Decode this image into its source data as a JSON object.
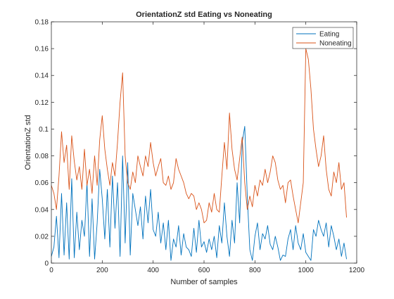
{
  "chart_data": {
    "type": "line",
    "title": "OrientationZ std Eating vs Noneating",
    "xlabel": "Number of samples",
    "ylabel": "OrientationZ std",
    "xlim": [
      0,
      1200
    ],
    "ylim": [
      0,
      0.18
    ],
    "x_ticks": [
      0,
      200,
      400,
      600,
      800,
      1000,
      1200
    ],
    "y_ticks": [
      0,
      0.02,
      0.04,
      0.06,
      0.08,
      0.1,
      0.12,
      0.14,
      0.16,
      0.18
    ],
    "x_tick_labels": [
      "0",
      "200",
      "400",
      "600",
      "800",
      "1000",
      "1200"
    ],
    "y_tick_labels": [
      "0",
      "0.02",
      "0.04",
      "0.06",
      "0.08",
      "0.1",
      "0.12",
      "0.14",
      "0.16",
      "0.18"
    ],
    "grid": false,
    "legend": "top-right",
    "colors": {
      "Eating": "#0072BD",
      "Noneating": "#D95319"
    },
    "series": [
      {
        "name": "Eating",
        "x": [
          0,
          10,
          20,
          30,
          40,
          50,
          60,
          70,
          80,
          90,
          100,
          110,
          120,
          130,
          140,
          150,
          160,
          170,
          180,
          190,
          200,
          210,
          220,
          230,
          240,
          250,
          260,
          270,
          280,
          290,
          300,
          310,
          320,
          330,
          340,
          350,
          360,
          370,
          380,
          390,
          400,
          410,
          420,
          430,
          440,
          450,
          460,
          470,
          480,
          490,
          500,
          510,
          520,
          530,
          540,
          550,
          560,
          570,
          580,
          590,
          600,
          610,
          620,
          630,
          640,
          650,
          660,
          670,
          680,
          690,
          700,
          710,
          720,
          730,
          740,
          750,
          760,
          770,
          780,
          790,
          800,
          810,
          820,
          830,
          840,
          850,
          860,
          870,
          880,
          890,
          900,
          910,
          920,
          930,
          940,
          950,
          960,
          970,
          980,
          990,
          1000,
          1010,
          1020,
          1030,
          1040,
          1050,
          1060,
          1070,
          1080,
          1090,
          1100,
          1110,
          1120,
          1130,
          1140,
          1150,
          1160
        ],
        "y": [
          0.005,
          0.012,
          0.035,
          0.004,
          0.052,
          0.006,
          0.045,
          0.003,
          0.063,
          0.004,
          0.038,
          0.01,
          0.032,
          0.02,
          0.06,
          0.005,
          0.048,
          0.003,
          0.03,
          0.07,
          0.048,
          0.018,
          0.055,
          0.012,
          0.065,
          0.026,
          0.06,
          0.005,
          0.08,
          0.015,
          0.075,
          0.006,
          0.052,
          0.04,
          0.028,
          0.042,
          0.018,
          0.05,
          0.03,
          0.055,
          0.025,
          0.02,
          0.038,
          0.015,
          0.03,
          0.01,
          0.032,
          0.002,
          0.018,
          0.012,
          0.028,
          0.006,
          0.022,
          0.012,
          0.01,
          0.005,
          0.026,
          0.008,
          0.032,
          0.012,
          0.016,
          0.008,
          0.018,
          0.01,
          0.02,
          0.004,
          0.028,
          0.015,
          0.045,
          0.02,
          0.005,
          0.032,
          0.015,
          0.06,
          0.03,
          0.09,
          0.102,
          0.05,
          0.01,
          0.002,
          0.02,
          0.03,
          0.01,
          0.022,
          0.018,
          0.028,
          0.014,
          0.01,
          0.02,
          0.012,
          0.002,
          0.006,
          0.005,
          0.018,
          0.025,
          0.01,
          0.028,
          0.015,
          0.01,
          0.022,
          0.008,
          0.005,
          0.002,
          0.025,
          0.02,
          0.032,
          0.025,
          0.02,
          0.03,
          0.012,
          0.028,
          0.02,
          0.01,
          0.018,
          0.005,
          0.015,
          0.003
        ]
      },
      {
        "name": "Noneating",
        "x": [
          0,
          10,
          20,
          30,
          40,
          50,
          60,
          70,
          80,
          90,
          100,
          110,
          120,
          130,
          140,
          150,
          160,
          170,
          180,
          190,
          200,
          210,
          220,
          230,
          240,
          250,
          260,
          270,
          280,
          290,
          300,
          310,
          320,
          330,
          340,
          350,
          360,
          370,
          380,
          390,
          400,
          410,
          420,
          430,
          440,
          450,
          460,
          470,
          480,
          490,
          500,
          510,
          520,
          530,
          540,
          550,
          560,
          570,
          580,
          590,
          600,
          610,
          620,
          630,
          640,
          650,
          660,
          670,
          680,
          690,
          700,
          710,
          720,
          730,
          740,
          750,
          760,
          770,
          780,
          790,
          800,
          810,
          820,
          830,
          840,
          850,
          860,
          870,
          880,
          890,
          900,
          910,
          920,
          930,
          940,
          950,
          960,
          970,
          980,
          990,
          1000,
          1010,
          1020,
          1030,
          1040,
          1050,
          1060,
          1070,
          1080,
          1090,
          1100,
          1110,
          1120,
          1130,
          1140,
          1150,
          1160
        ],
        "y": [
          0.058,
          0.052,
          0.04,
          0.065,
          0.098,
          0.075,
          0.088,
          0.055,
          0.095,
          0.076,
          0.062,
          0.072,
          0.055,
          0.085,
          0.058,
          0.07,
          0.052,
          0.08,
          0.058,
          0.092,
          0.11,
          0.085,
          0.07,
          0.058,
          0.075,
          0.065,
          0.09,
          0.12,
          0.142,
          0.08,
          0.06,
          0.055,
          0.068,
          0.06,
          0.08,
          0.072,
          0.065,
          0.08,
          0.072,
          0.09,
          0.075,
          0.065,
          0.072,
          0.078,
          0.06,
          0.058,
          0.065,
          0.055,
          0.06,
          0.078,
          0.07,
          0.065,
          0.06,
          0.052,
          0.048,
          0.052,
          0.05,
          0.04,
          0.045,
          0.04,
          0.03,
          0.032,
          0.045,
          0.038,
          0.052,
          0.04,
          0.038,
          0.065,
          0.09,
          0.07,
          0.112,
          0.085,
          0.07,
          0.062,
          0.078,
          0.094,
          0.06,
          0.04,
          0.05,
          0.042,
          0.058,
          0.05,
          0.062,
          0.058,
          0.07,
          0.06,
          0.068,
          0.08,
          0.075,
          0.062,
          0.055,
          0.058,
          0.045,
          0.06,
          0.062,
          0.05,
          0.04,
          0.03,
          0.045,
          0.06,
          0.16,
          0.152,
          0.13,
          0.1,
          0.085,
          0.072,
          0.08,
          0.095,
          0.07,
          0.055,
          0.05,
          0.068,
          0.06,
          0.075,
          0.055,
          0.06,
          0.034
        ]
      }
    ]
  }
}
